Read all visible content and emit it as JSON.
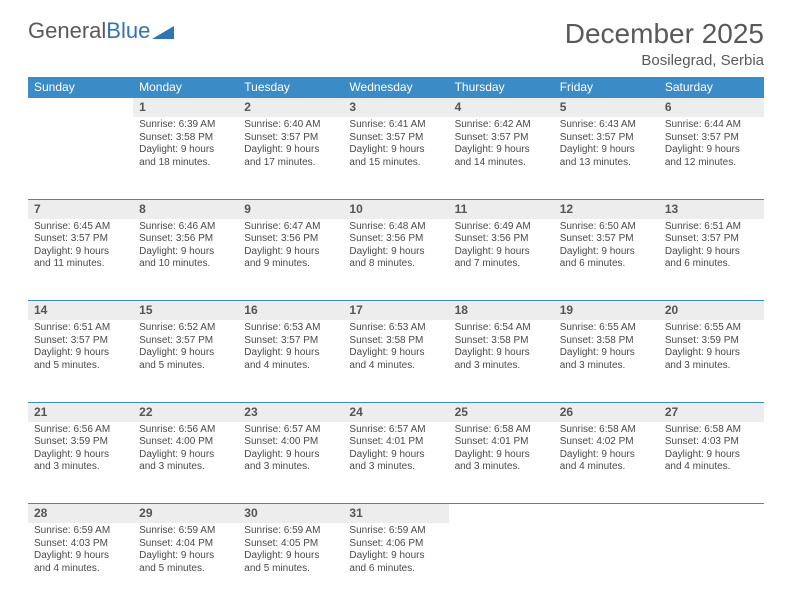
{
  "brand": {
    "part1": "General",
    "part2": "Blue"
  },
  "title": "December 2025",
  "location": "Bosilegrad, Serbia",
  "colors": {
    "header_bg": "#3b8bc7",
    "header_text": "#ffffff",
    "daynum_bg": "#ededed",
    "border": "#3b8bc7",
    "text": "#4a4a4a",
    "logo_gray": "#595959",
    "logo_blue": "#2f75b5"
  },
  "day_headers": [
    "Sunday",
    "Monday",
    "Tuesday",
    "Wednesday",
    "Thursday",
    "Friday",
    "Saturday"
  ],
  "weeks": [
    {
      "nums": [
        "",
        "1",
        "2",
        "3",
        "4",
        "5",
        "6"
      ],
      "cells": [
        null,
        {
          "sunrise": "Sunrise: 6:39 AM",
          "sunset": "Sunset: 3:58 PM",
          "day1": "Daylight: 9 hours",
          "day2": "and 18 minutes."
        },
        {
          "sunrise": "Sunrise: 6:40 AM",
          "sunset": "Sunset: 3:57 PM",
          "day1": "Daylight: 9 hours",
          "day2": "and 17 minutes."
        },
        {
          "sunrise": "Sunrise: 6:41 AM",
          "sunset": "Sunset: 3:57 PM",
          "day1": "Daylight: 9 hours",
          "day2": "and 15 minutes."
        },
        {
          "sunrise": "Sunrise: 6:42 AM",
          "sunset": "Sunset: 3:57 PM",
          "day1": "Daylight: 9 hours",
          "day2": "and 14 minutes."
        },
        {
          "sunrise": "Sunrise: 6:43 AM",
          "sunset": "Sunset: 3:57 PM",
          "day1": "Daylight: 9 hours",
          "day2": "and 13 minutes."
        },
        {
          "sunrise": "Sunrise: 6:44 AM",
          "sunset": "Sunset: 3:57 PM",
          "day1": "Daylight: 9 hours",
          "day2": "and 12 minutes."
        }
      ]
    },
    {
      "nums": [
        "7",
        "8",
        "9",
        "10",
        "11",
        "12",
        "13"
      ],
      "cells": [
        {
          "sunrise": "Sunrise: 6:45 AM",
          "sunset": "Sunset: 3:57 PM",
          "day1": "Daylight: 9 hours",
          "day2": "and 11 minutes."
        },
        {
          "sunrise": "Sunrise: 6:46 AM",
          "sunset": "Sunset: 3:56 PM",
          "day1": "Daylight: 9 hours",
          "day2": "and 10 minutes."
        },
        {
          "sunrise": "Sunrise: 6:47 AM",
          "sunset": "Sunset: 3:56 PM",
          "day1": "Daylight: 9 hours",
          "day2": "and 9 minutes."
        },
        {
          "sunrise": "Sunrise: 6:48 AM",
          "sunset": "Sunset: 3:56 PM",
          "day1": "Daylight: 9 hours",
          "day2": "and 8 minutes."
        },
        {
          "sunrise": "Sunrise: 6:49 AM",
          "sunset": "Sunset: 3:56 PM",
          "day1": "Daylight: 9 hours",
          "day2": "and 7 minutes."
        },
        {
          "sunrise": "Sunrise: 6:50 AM",
          "sunset": "Sunset: 3:57 PM",
          "day1": "Daylight: 9 hours",
          "day2": "and 6 minutes."
        },
        {
          "sunrise": "Sunrise: 6:51 AM",
          "sunset": "Sunset: 3:57 PM",
          "day1": "Daylight: 9 hours",
          "day2": "and 6 minutes."
        }
      ]
    },
    {
      "nums": [
        "14",
        "15",
        "16",
        "17",
        "18",
        "19",
        "20"
      ],
      "cells": [
        {
          "sunrise": "Sunrise: 6:51 AM",
          "sunset": "Sunset: 3:57 PM",
          "day1": "Daylight: 9 hours",
          "day2": "and 5 minutes."
        },
        {
          "sunrise": "Sunrise: 6:52 AM",
          "sunset": "Sunset: 3:57 PM",
          "day1": "Daylight: 9 hours",
          "day2": "and 5 minutes."
        },
        {
          "sunrise": "Sunrise: 6:53 AM",
          "sunset": "Sunset: 3:57 PM",
          "day1": "Daylight: 9 hours",
          "day2": "and 4 minutes."
        },
        {
          "sunrise": "Sunrise: 6:53 AM",
          "sunset": "Sunset: 3:58 PM",
          "day1": "Daylight: 9 hours",
          "day2": "and 4 minutes."
        },
        {
          "sunrise": "Sunrise: 6:54 AM",
          "sunset": "Sunset: 3:58 PM",
          "day1": "Daylight: 9 hours",
          "day2": "and 3 minutes."
        },
        {
          "sunrise": "Sunrise: 6:55 AM",
          "sunset": "Sunset: 3:58 PM",
          "day1": "Daylight: 9 hours",
          "day2": "and 3 minutes."
        },
        {
          "sunrise": "Sunrise: 6:55 AM",
          "sunset": "Sunset: 3:59 PM",
          "day1": "Daylight: 9 hours",
          "day2": "and 3 minutes."
        }
      ]
    },
    {
      "nums": [
        "21",
        "22",
        "23",
        "24",
        "25",
        "26",
        "27"
      ],
      "cells": [
        {
          "sunrise": "Sunrise: 6:56 AM",
          "sunset": "Sunset: 3:59 PM",
          "day1": "Daylight: 9 hours",
          "day2": "and 3 minutes."
        },
        {
          "sunrise": "Sunrise: 6:56 AM",
          "sunset": "Sunset: 4:00 PM",
          "day1": "Daylight: 9 hours",
          "day2": "and 3 minutes."
        },
        {
          "sunrise": "Sunrise: 6:57 AM",
          "sunset": "Sunset: 4:00 PM",
          "day1": "Daylight: 9 hours",
          "day2": "and 3 minutes."
        },
        {
          "sunrise": "Sunrise: 6:57 AM",
          "sunset": "Sunset: 4:01 PM",
          "day1": "Daylight: 9 hours",
          "day2": "and 3 minutes."
        },
        {
          "sunrise": "Sunrise: 6:58 AM",
          "sunset": "Sunset: 4:01 PM",
          "day1": "Daylight: 9 hours",
          "day2": "and 3 minutes."
        },
        {
          "sunrise": "Sunrise: 6:58 AM",
          "sunset": "Sunset: 4:02 PM",
          "day1": "Daylight: 9 hours",
          "day2": "and 4 minutes."
        },
        {
          "sunrise": "Sunrise: 6:58 AM",
          "sunset": "Sunset: 4:03 PM",
          "day1": "Daylight: 9 hours",
          "day2": "and 4 minutes."
        }
      ]
    },
    {
      "nums": [
        "28",
        "29",
        "30",
        "31",
        "",
        "",
        ""
      ],
      "cells": [
        {
          "sunrise": "Sunrise: 6:59 AM",
          "sunset": "Sunset: 4:03 PM",
          "day1": "Daylight: 9 hours",
          "day2": "and 4 minutes."
        },
        {
          "sunrise": "Sunrise: 6:59 AM",
          "sunset": "Sunset: 4:04 PM",
          "day1": "Daylight: 9 hours",
          "day2": "and 5 minutes."
        },
        {
          "sunrise": "Sunrise: 6:59 AM",
          "sunset": "Sunset: 4:05 PM",
          "day1": "Daylight: 9 hours",
          "day2": "and 5 minutes."
        },
        {
          "sunrise": "Sunrise: 6:59 AM",
          "sunset": "Sunset: 4:06 PM",
          "day1": "Daylight: 9 hours",
          "day2": "and 6 minutes."
        },
        null,
        null,
        null
      ]
    }
  ]
}
